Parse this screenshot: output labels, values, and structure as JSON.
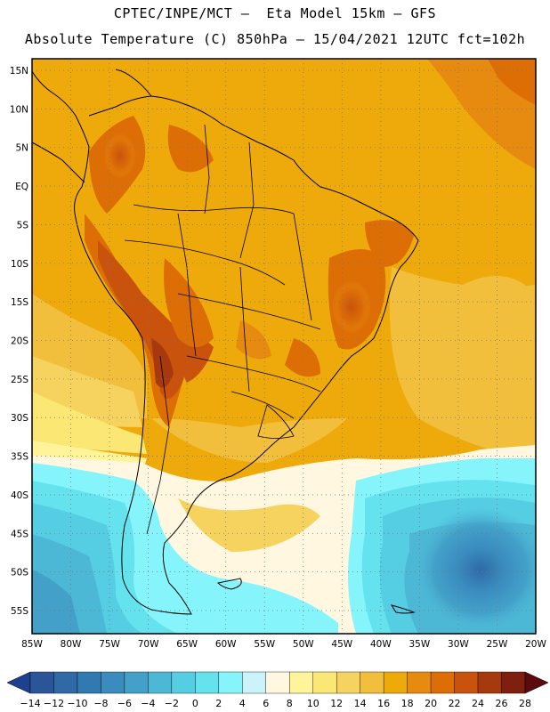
{
  "header": {
    "line1": "CPTEC/INPE/MCT –  Eta Model 15km – GFS",
    "line2": "Absolute Temperature (C) 850hPa – 15/04/2021 12UTC fct=102h"
  },
  "map": {
    "lat_labels": [
      "15N",
      "10N",
      "5N",
      "EQ",
      "5S",
      "10S",
      "15S",
      "20S",
      "25S",
      "30S",
      "35S",
      "40S",
      "45S",
      "50S",
      "55S"
    ],
    "lon_labels": [
      "85W",
      "80W",
      "75W",
      "70W",
      "65W",
      "60W",
      "55W",
      "50W",
      "45W",
      "40W",
      "35W",
      "30W",
      "25W",
      "20W"
    ],
    "lat_values": [
      15,
      10,
      5,
      0,
      -5,
      -10,
      -15,
      -20,
      -25,
      -30,
      -35,
      -40,
      -45,
      -50,
      -55
    ],
    "lon_values": [
      -85,
      -80,
      -75,
      -70,
      -65,
      -60,
      -55,
      -50,
      -45,
      -40,
      -35,
      -30,
      -25,
      -20
    ],
    "lat_range": [
      -58,
      16.5
    ],
    "lon_range": [
      -85,
      -20
    ],
    "grid_style": "dotted"
  },
  "colorbar": {
    "labels": [
      "-14",
      "-12",
      "-10",
      "-8",
      "-6",
      "-4",
      "-2",
      "0",
      "2",
      "4",
      "6",
      "8",
      "10",
      "12",
      "14",
      "16",
      "18",
      "20",
      "22",
      "24",
      "26",
      "28"
    ],
    "colors": [
      "#1f3f8f",
      "#2a5598",
      "#2f6aa6",
      "#3079b1",
      "#3a8cbf",
      "#43a1c9",
      "#4db8d6",
      "#55cde3",
      "#64e2ee",
      "#86f5fb",
      "#cbf4fa",
      "#fff7df",
      "#fff49a",
      "#fbe774",
      "#f6d35e",
      "#f2bf3d",
      "#eeaa0b",
      "#e78b10",
      "#dd6e06",
      "#c9530c",
      "#a7390f",
      "#7e1f10",
      "#5b0a0e"
    ]
  }
}
